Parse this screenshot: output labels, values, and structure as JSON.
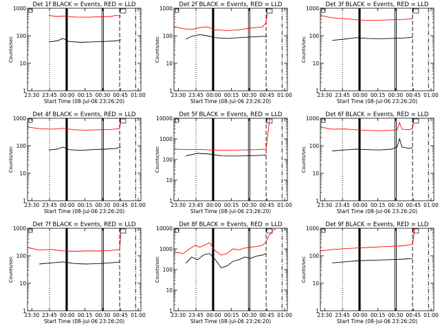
{
  "figure": {
    "xlabel_template": "Start Time (08-Jul-06 23:26:20)",
    "ylabel": "Counts/sec",
    "xticks": [
      "23:30",
      "23:45",
      "00:00",
      "00:15",
      "00:30",
      "00:45",
      "01:00"
    ],
    "colors": {
      "events": "#000000",
      "lld": "#ff0000"
    }
  },
  "chart_data": [
    {
      "type": "line",
      "title": "Det 1f BLACK = Events, RED = LLD",
      "xlabel": "Start Time (08-Jul-06 23:26:20)",
      "ylabel": "Counts/sec",
      "x_unit": "minutes after 23:26:20",
      "ylog": true,
      "ylim": [
        1,
        1000
      ],
      "yticks": [
        "1",
        "10",
        "100",
        "1000"
      ],
      "xticks": [
        "23:30",
        "23:45",
        "00:00",
        "00:15",
        "00:30",
        "00:45",
        "01:00"
      ],
      "series": [
        {
          "name": "LLD",
          "color": "#ff0000",
          "points": [
            [
              18,
              550
            ],
            [
              25,
              500
            ],
            [
              30,
              520
            ],
            [
              40,
              480
            ],
            [
              50,
              470
            ],
            [
              60,
              490
            ],
            [
              70,
              500
            ],
            [
              75,
              550
            ],
            [
              79,
              520
            ]
          ]
        },
        {
          "name": "Events",
          "color": "#000000",
          "points": [
            [
              18,
              60
            ],
            [
              25,
              65
            ],
            [
              30,
              80
            ],
            [
              35,
              62
            ],
            [
              45,
              58
            ],
            [
              55,
              60
            ],
            [
              65,
              62
            ],
            [
              75,
              65
            ],
            [
              79,
              72
            ]
          ]
        }
      ]
    },
    {
      "type": "line",
      "title": "Det 2f BLACK = Events, RED = LLD",
      "xlabel": "Start Time (08-Jul-06 23:26:20)",
      "ylabel": "Counts/sec",
      "ylog": true,
      "ylim": [
        1,
        1000
      ],
      "yticks": [
        "1",
        "10",
        "100",
        "1000"
      ],
      "xticks": [
        "23:30",
        "23:45",
        "00:00",
        "00:15",
        "00:30",
        "00:45",
        "01:00"
      ],
      "series": [
        {
          "name": "LLD",
          "color": "#ff0000",
          "points": [
            [
              0,
              220
            ],
            [
              8,
              180
            ],
            [
              15,
              170
            ],
            [
              22,
              200
            ],
            [
              28,
              210
            ],
            [
              35,
              165
            ],
            [
              45,
              155
            ],
            [
              55,
              165
            ],
            [
              65,
              190
            ],
            [
              75,
              210
            ],
            [
              78,
              300
            ],
            [
              79,
              700
            ]
          ]
        },
        {
          "name": "Events",
          "color": "#000000",
          "points": [
            [
              10,
              75
            ],
            [
              15,
              95
            ],
            [
              22,
              110
            ],
            [
              28,
              100
            ],
            [
              35,
              85
            ],
            [
              45,
              80
            ],
            [
              55,
              85
            ],
            [
              65,
              90
            ],
            [
              75,
              95
            ],
            [
              79,
              95
            ]
          ]
        }
      ]
    },
    {
      "type": "line",
      "title": "Det 3f BLACK = Events, RED = LLD",
      "xlabel": "Start Time (08-Jul-06 23:26:20)",
      "ylabel": "Counts/sec",
      "ylog": true,
      "ylim": [
        1,
        1000
      ],
      "yticks": [
        "1",
        "10",
        "100",
        "1000"
      ],
      "xticks": [
        "23:30",
        "23:45",
        "00:00",
        "00:15",
        "00:30",
        "00:45",
        "01:00"
      ],
      "series": [
        {
          "name": "LLD",
          "color": "#ff0000",
          "points": [
            [
              0,
              550
            ],
            [
              10,
              450
            ],
            [
              20,
              420
            ],
            [
              30,
              380
            ],
            [
              40,
              360
            ],
            [
              50,
              370
            ],
            [
              60,
              380
            ],
            [
              70,
              390
            ],
            [
              78,
              420
            ]
          ]
        },
        {
          "name": "Events",
          "color": "#000000",
          "points": [
            [
              10,
              68
            ],
            [
              20,
              75
            ],
            [
              30,
              85
            ],
            [
              40,
              80
            ],
            [
              50,
              78
            ],
            [
              60,
              80
            ],
            [
              70,
              82
            ],
            [
              78,
              88
            ]
          ]
        }
      ]
    },
    {
      "type": "line",
      "title": "Det 4f BLACK = Events, RED = LLD",
      "xlabel": "Start Time (08-Jul-06 23:26:20)",
      "ylabel": "Counts/sec",
      "ylog": true,
      "ylim": [
        1,
        1000
      ],
      "yticks": [
        "1",
        "10",
        "100",
        "1000"
      ],
      "xticks": [
        "23:30",
        "23:45",
        "00:00",
        "00:15",
        "00:30",
        "00:45",
        "01:00"
      ],
      "series": [
        {
          "name": "LLD",
          "color": "#ff0000",
          "points": [
            [
              0,
              480
            ],
            [
              10,
              420
            ],
            [
              20,
              400
            ],
            [
              30,
              430
            ],
            [
              40,
              380
            ],
            [
              50,
              370
            ],
            [
              60,
              380
            ],
            [
              70,
              390
            ],
            [
              78,
              420
            ],
            [
              79,
              800
            ]
          ]
        },
        {
          "name": "Events",
          "color": "#000000",
          "points": [
            [
              18,
              70
            ],
            [
              25,
              75
            ],
            [
              30,
              90
            ],
            [
              35,
              72
            ],
            [
              45,
              68
            ],
            [
              55,
              72
            ],
            [
              65,
              75
            ],
            [
              75,
              80
            ],
            [
              79,
              90
            ]
          ]
        }
      ]
    },
    {
      "type": "line",
      "title": "Det 5f BLACK = Events, RED = LLD",
      "xlabel": "Start Time (08-Jul-06 23:26:20)",
      "ylabel": "Counts/sec",
      "ylog": true,
      "ylim": [
        1,
        10000
      ],
      "yticks": [
        "1",
        "10",
        "100",
        "1000",
        "10000"
      ],
      "xticks": [
        "23:30",
        "23:45",
        "00:00",
        "00:15",
        "00:30",
        "00:45",
        "01:00"
      ],
      "series": [
        {
          "name": "LLD",
          "color": "#ff0000",
          "points": [
            [
              0,
              320
            ],
            [
              10,
              300
            ],
            [
              20,
              310
            ],
            [
              30,
              290
            ],
            [
              40,
              280
            ],
            [
              50,
              285
            ],
            [
              60,
              290
            ],
            [
              70,
              300
            ],
            [
              78,
              320
            ],
            [
              80,
              3000
            ],
            [
              81,
              10000
            ],
            [
              83,
              10000
            ]
          ]
        },
        {
          "name": "Events",
          "color": "#000000",
          "points": [
            [
              10,
              150
            ],
            [
              20,
              200
            ],
            [
              30,
              185
            ],
            [
              40,
              150
            ],
            [
              50,
              148
            ],
            [
              60,
              150
            ],
            [
              70,
              155
            ],
            [
              78,
              165
            ]
          ]
        }
      ]
    },
    {
      "type": "line",
      "title": "Det 6f BLACK = Events, RED = LLD",
      "xlabel": "Start Time (08-Jul-06 23:26:20)",
      "ylabel": "Counts/sec",
      "ylog": true,
      "ylim": [
        1,
        1000
      ],
      "yticks": [
        "1",
        "10",
        "100",
        "1000"
      ],
      "xticks": [
        "23:30",
        "23:45",
        "00:00",
        "00:15",
        "00:30",
        "00:45",
        "01:00"
      ],
      "series": [
        {
          "name": "LLD",
          "color": "#ff0000",
          "points": [
            [
              0,
              480
            ],
            [
              10,
              400
            ],
            [
              20,
              410
            ],
            [
              30,
              380
            ],
            [
              40,
              360
            ],
            [
              50,
              350
            ],
            [
              60,
              360
            ],
            [
              65,
              380
            ],
            [
              67,
              700
            ],
            [
              69,
              400
            ],
            [
              75,
              380
            ],
            [
              78,
              420
            ],
            [
              79,
              900
            ]
          ]
        },
        {
          "name": "Events",
          "color": "#000000",
          "points": [
            [
              10,
              65
            ],
            [
              20,
              70
            ],
            [
              30,
              75
            ],
            [
              40,
              72
            ],
            [
              50,
              70
            ],
            [
              60,
              75
            ],
            [
              65,
              90
            ],
            [
              67,
              180
            ],
            [
              69,
              90
            ],
            [
              75,
              80
            ],
            [
              78,
              85
            ]
          ]
        }
      ]
    },
    {
      "type": "line",
      "title": "Det 7f BLACK = Events, RED = LLD",
      "xlabel": "Start Time (08-Jul-06 23:26:20)",
      "ylabel": "Counts/sec",
      "ylog": true,
      "ylim": [
        1,
        1000
      ],
      "yticks": [
        "1",
        "10",
        "100",
        "1000"
      ],
      "xticks": [
        "23:30",
        "23:45",
        "00:00",
        "00:15",
        "00:30",
        "00:45",
        "01:00"
      ],
      "series": [
        {
          "name": "LLD",
          "color": "#ff0000",
          "points": [
            [
              0,
              200
            ],
            [
              10,
              160
            ],
            [
              20,
              170
            ],
            [
              30,
              150
            ],
            [
              40,
              145
            ],
            [
              50,
              150
            ],
            [
              60,
              150
            ],
            [
              70,
              155
            ],
            [
              78,
              170
            ],
            [
              79,
              700
            ]
          ]
        },
        {
          "name": "Events",
          "color": "#000000",
          "points": [
            [
              10,
              50
            ],
            [
              20,
              55
            ],
            [
              30,
              60
            ],
            [
              40,
              52
            ],
            [
              50,
              50
            ],
            [
              60,
              52
            ],
            [
              70,
              55
            ],
            [
              78,
              60
            ]
          ]
        }
      ]
    },
    {
      "type": "line",
      "title": "Det 8f BLACK = Events, RED = LLD",
      "xlabel": "Start Time (08-Jul-06 23:26:20)",
      "ylabel": "Counts/sec",
      "ylog": true,
      "ylim": [
        1,
        10000
      ],
      "yticks": [
        "1",
        "10",
        "100",
        "1000",
        "10000"
      ],
      "xticks": [
        "23:30",
        "23:45",
        "00:00",
        "00:15",
        "00:30",
        "00:45",
        "01:00"
      ],
      "series": [
        {
          "name": "LLD",
          "color": "#ff0000",
          "points": [
            [
              0,
              700
            ],
            [
              8,
              600
            ],
            [
              12,
              900
            ],
            [
              18,
              1500
            ],
            [
              22,
              1200
            ],
            [
              30,
              2000
            ],
            [
              35,
              800
            ],
            [
              40,
              500
            ],
            [
              45,
              600
            ],
            [
              50,
              1000
            ],
            [
              55,
              900
            ],
            [
              60,
              1100
            ],
            [
              65,
              1200
            ],
            [
              70,
              1300
            ],
            [
              75,
              1500
            ],
            [
              78,
              2200
            ],
            [
              80,
              4000
            ],
            [
              84,
              8000
            ],
            [
              86,
              9000
            ]
          ]
        },
        {
          "name": "Events",
          "color": "#000000",
          "points": [
            [
              10,
              200
            ],
            [
              15,
              400
            ],
            [
              20,
              300
            ],
            [
              25,
              500
            ],
            [
              30,
              600
            ],
            [
              35,
              300
            ],
            [
              40,
              120
            ],
            [
              45,
              150
            ],
            [
              50,
              250
            ],
            [
              55,
              300
            ],
            [
              60,
              400
            ],
            [
              65,
              350
            ],
            [
              70,
              450
            ],
            [
              75,
              500
            ],
            [
              78,
              600
            ]
          ]
        }
      ]
    },
    {
      "type": "line",
      "title": "Det 9f BLACK = Events, RED = LLD",
      "xlabel": "Start Time (08-Jul-06 23:26:20)",
      "ylabel": "Counts/sec",
      "ylog": true,
      "ylim": [
        1,
        1000
      ],
      "yticks": [
        "1",
        "10",
        "100",
        "1000"
      ],
      "xticks": [
        "23:30",
        "23:45",
        "00:00",
        "00:15",
        "00:30",
        "00:45",
        "01:00"
      ],
      "series": [
        {
          "name": "LLD",
          "color": "#ff0000",
          "points": [
            [
              0,
              150
            ],
            [
              10,
              170
            ],
            [
              20,
              180
            ],
            [
              30,
              190
            ],
            [
              40,
              200
            ],
            [
              50,
              210
            ],
            [
              60,
              220
            ],
            [
              70,
              230
            ],
            [
              78,
              260
            ],
            [
              80,
              1000
            ]
          ]
        },
        {
          "name": "Events",
          "color": "#000000",
          "points": [
            [
              10,
              55
            ],
            [
              20,
              60
            ],
            [
              30,
              65
            ],
            [
              40,
              68
            ],
            [
              50,
              70
            ],
            [
              60,
              72
            ],
            [
              70,
              75
            ],
            [
              78,
              80
            ]
          ]
        }
      ]
    }
  ]
}
